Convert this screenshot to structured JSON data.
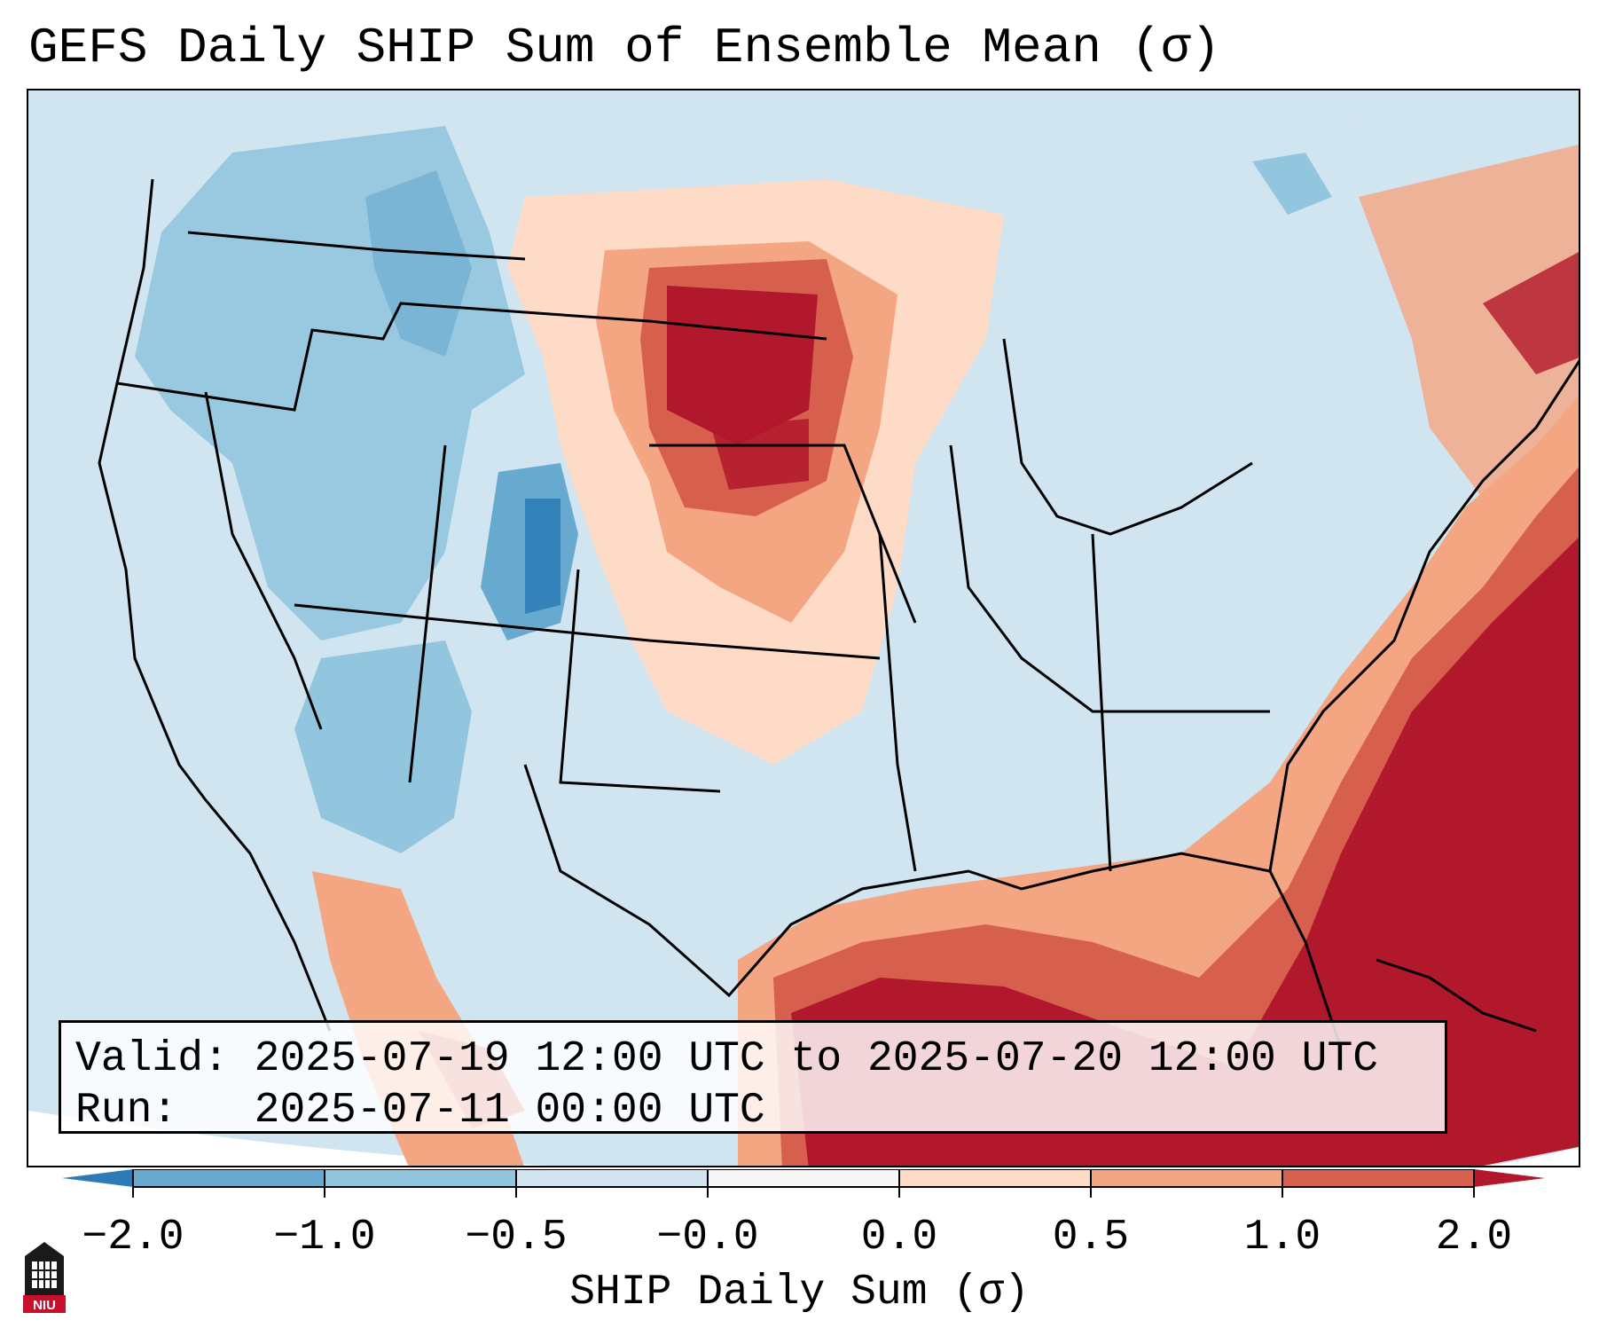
{
  "title": "GEFS Daily SHIP Sum of Ensemble Mean (σ)",
  "info": {
    "valid_label": "Valid:",
    "valid_value": "2025-07-19 12:00 UTC to 2025-07-20 12:00 UTC",
    "run_label": "Run:",
    "run_value": "2025-07-11 00:00 UTC"
  },
  "colorbar": {
    "label": "SHIP Daily Sum (σ)",
    "ticks": [
      "−2.0",
      "−1.0",
      "−0.5",
      "−0.0",
      "0.0",
      "0.5",
      "1.0",
      "2.0"
    ],
    "bin_colors": [
      "#2c7bb6",
      "#67a9cf",
      "#92c5de",
      "#d1e5f0",
      "#f7f7f7",
      "#fddbc7",
      "#f4a582",
      "#d6604d",
      "#b2182b"
    ]
  },
  "logo": {
    "text": "NIU",
    "color": "#c8102e"
  },
  "colors": {
    "background": "#d1e5f0",
    "strong_positive": "#b2182b"
  }
}
